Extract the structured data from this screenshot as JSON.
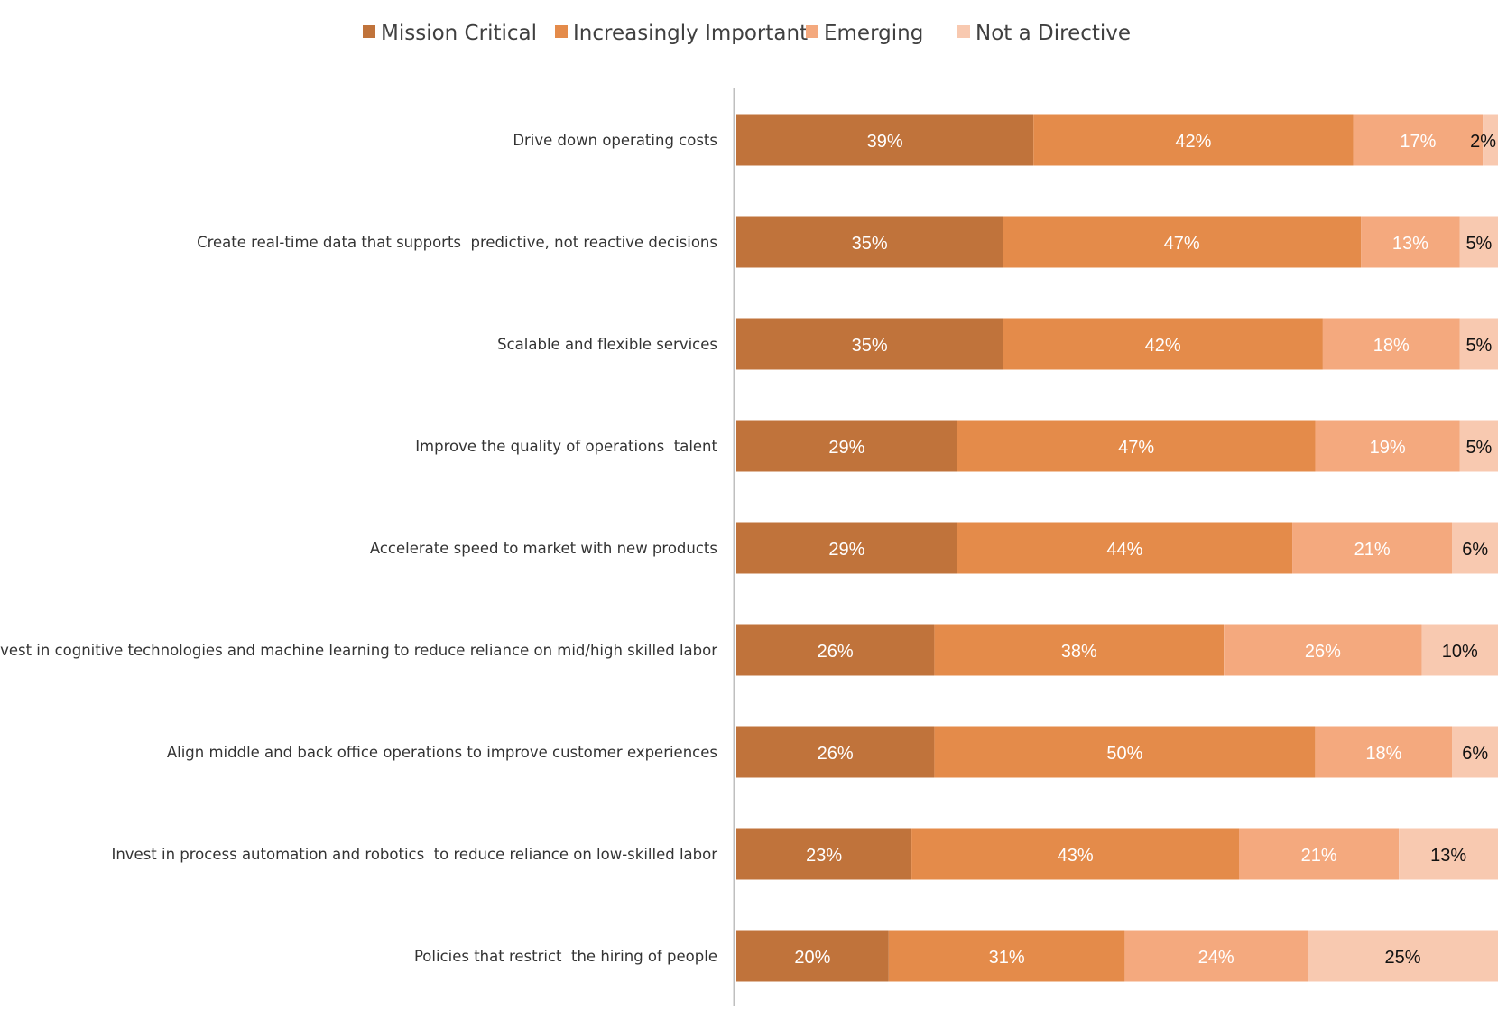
{
  "chart_data": {
    "type": "bar",
    "orientation": "horizontal",
    "stacked": true,
    "categories": [
      "Drive down operating costs",
      "Create real-time data that supports  predictive, not reactive decisions",
      "Scalable and flexible services",
      "Improve the quality of operations  talent",
      "Accelerate speed to market with new products",
      "Invest in cognitive technologies and machine learning to reduce reliance on mid/high skilled labor",
      "Align middle and back office operations to improve customer experiences",
      "Invest in process automation and robotics  to reduce reliance on low-skilled labor",
      "Policies that restrict  the hiring of people"
    ],
    "series": [
      {
        "name": "Mission Critical",
        "color": "#C0733B",
        "label_color": "#FFFFFF",
        "values": [
          39,
          35,
          35,
          29,
          29,
          26,
          26,
          23,
          20
        ],
        "labels": [
          "39%",
          "35%",
          "35%",
          "29%",
          "29%",
          "26%",
          "26%",
          "23%",
          "20%"
        ]
      },
      {
        "name": "Increasingly Important",
        "color": "#E48B4A",
        "label_color": "#FFFFFF",
        "values": [
          42,
          47,
          42,
          47,
          44,
          38,
          50,
          43,
          31
        ],
        "labels": [
          "42%",
          "47%",
          "42%",
          "47%",
          "44%",
          "38%",
          "50%",
          "43%",
          "31%"
        ]
      },
      {
        "name": "Emerging",
        "color": "#F4A97E",
        "label_color": "#FFFFFF",
        "values": [
          17,
          13,
          18,
          19,
          21,
          26,
          18,
          21,
          24
        ],
        "labels": [
          "17%",
          "13%",
          "18%",
          "19%",
          "21%",
          "26%",
          "18%",
          "21%",
          "24%"
        ]
      },
      {
        "name": "Not a Directive",
        "color": "#F8C9B0",
        "label_color": "#111111",
        "values": [
          2,
          5,
          5,
          5,
          6,
          10,
          6,
          13,
          25
        ],
        "labels": [
          "2%",
          "5%",
          "5%",
          "5%",
          "6%",
          "10%",
          "6%",
          "13%",
          "25%"
        ]
      }
    ],
    "legend_position": "top",
    "grid": false,
    "axis_line_color": "#BFBFBF"
  }
}
